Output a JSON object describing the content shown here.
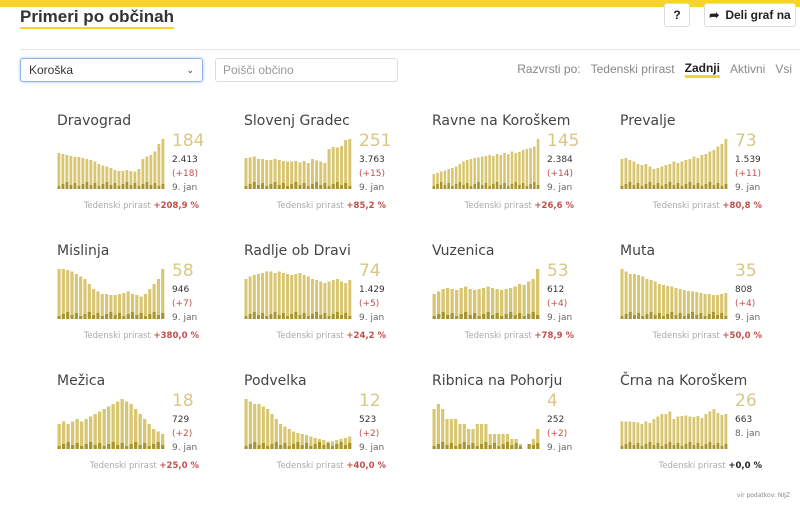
{
  "header": {
    "title": "Primeri po občinah",
    "help_label": "?",
    "share_label": "Deli graf na"
  },
  "filters": {
    "region": "Koroška",
    "search_placeholder": "Poišči občino",
    "sort_label": "Razvrsti po:",
    "sort_options": [
      "Tedenski prirast",
      "Zadnji",
      "Aktivni",
      "Vsi"
    ],
    "sort_active": "Zadnji"
  },
  "growth_label": "Tedenski prirast",
  "colors": {
    "bar": "#d8c670",
    "bar_dark": "#a89530",
    "accent": "#f8d42a",
    "positive": "#c0504d"
  },
  "municipalities": [
    {
      "name": "Dravograd",
      "active": "184",
      "total": "2.413",
      "new": "(+18)",
      "date": "9. jan",
      "growth": "+208,9 %",
      "bars": [
        0.72,
        0.7,
        0.68,
        0.66,
        0.64,
        0.64,
        0.62,
        0.6,
        0.58,
        0.55,
        0.5,
        0.47,
        0.45,
        0.42,
        0.38,
        0.36,
        0.36,
        0.38,
        0.36,
        0.35,
        0.4,
        0.6,
        0.65,
        0.68,
        0.75,
        0.9,
        1
      ]
    },
    {
      "name": "Slovenj Gradec",
      "active": "251",
      "total": "3.763",
      "new": "(+15)",
      "date": "9. jan",
      "growth": "+85,2 %",
      "bars": [
        0.62,
        0.63,
        0.65,
        0.6,
        0.6,
        0.58,
        0.58,
        0.6,
        0.58,
        0.56,
        0.55,
        0.55,
        0.56,
        0.53,
        0.56,
        0.52,
        0.6,
        0.57,
        0.55,
        0.52,
        0.8,
        0.84,
        0.83,
        0.86,
        0.98,
        1
      ]
    },
    {
      "name": "Ravne na Koroškem",
      "active": "145",
      "total": "2.384",
      "new": "(+14)",
      "date": "9. jan",
      "growth": "+26,6 %",
      "bars": [
        0.3,
        0.32,
        0.35,
        0.37,
        0.4,
        0.42,
        0.45,
        0.5,
        0.55,
        0.58,
        0.6,
        0.62,
        0.63,
        0.65,
        0.66,
        0.68,
        0.66,
        0.7,
        0.68,
        0.72,
        0.7,
        0.75,
        0.72,
        0.74,
        0.78,
        0.8,
        0.82,
        0.85,
        1
      ]
    },
    {
      "name": "Prevalje",
      "active": "73",
      "total": "1.539",
      "new": "(+11)",
      "date": "9. jan",
      "growth": "+80,8 %",
      "bars": [
        0.6,
        0.62,
        0.58,
        0.55,
        0.5,
        0.48,
        0.5,
        0.45,
        0.4,
        0.42,
        0.45,
        0.48,
        0.5,
        0.55,
        0.52,
        0.55,
        0.58,
        0.6,
        0.65,
        0.62,
        0.68,
        0.7,
        0.75,
        0.78,
        0.85,
        0.9,
        1
      ]
    },
    {
      "name": "Mislinja",
      "active": "58",
      "total": "946",
      "new": "(+7)",
      "date": "9. jan",
      "growth": "+380,0 %",
      "bars": [
        1,
        1,
        0.98,
        0.95,
        0.9,
        0.85,
        0.8,
        0.7,
        0.6,
        0.55,
        0.5,
        0.5,
        0.48,
        0.48,
        0.5,
        0.52,
        0.55,
        0.5,
        0.48,
        0.45,
        0.5,
        0.6,
        0.7,
        0.8,
        1
      ]
    },
    {
      "name": "Radlje ob Dravi",
      "active": "74",
      "total": "1.429",
      "new": "(+5)",
      "date": "9. jan",
      "growth": "+24,2 %",
      "bars": [
        0.8,
        0.85,
        0.88,
        0.9,
        0.92,
        0.95,
        0.95,
        0.92,
        0.95,
        0.92,
        0.9,
        0.88,
        0.9,
        0.92,
        0.88,
        0.85,
        0.8,
        0.78,
        0.75,
        0.72,
        0.75,
        0.78,
        0.8,
        0.75,
        0.72,
        0.78
      ]
    },
    {
      "name": "Vuzenica",
      "active": "53",
      "total": "612",
      "new": "(+4)",
      "date": "9. jan",
      "growth": "+78,9 %",
      "bars": [
        0.5,
        0.55,
        0.6,
        0.62,
        0.6,
        0.58,
        0.62,
        0.65,
        0.6,
        0.58,
        0.6,
        0.62,
        0.65,
        0.62,
        0.6,
        0.58,
        0.6,
        0.62,
        0.65,
        0.7,
        0.68,
        0.75,
        0.8,
        1
      ]
    },
    {
      "name": "Muta",
      "active": "35",
      "total": "808",
      "new": "(+4)",
      "date": "9. jan",
      "growth": "+50,0 %",
      "bars": [
        1,
        0.95,
        0.9,
        0.9,
        0.88,
        0.85,
        0.8,
        0.78,
        0.75,
        0.7,
        0.68,
        0.66,
        0.65,
        0.62,
        0.6,
        0.58,
        0.56,
        0.55,
        0.54,
        0.52,
        0.5,
        0.5,
        0.48,
        0.48,
        0.5,
        0.52
      ]
    },
    {
      "name": "Mežica",
      "active": "18",
      "total": "729",
      "new": "(+2)",
      "date": "9. jan",
      "growth": "+25,0 %",
      "bars": [
        0.5,
        0.55,
        0.5,
        0.55,
        0.6,
        0.55,
        0.6,
        0.65,
        0.7,
        0.75,
        0.8,
        0.85,
        0.9,
        0.95,
        1,
        0.95,
        0.9,
        0.8,
        0.7,
        0.6,
        0.5,
        0.4,
        0.35,
        0.3
      ]
    },
    {
      "name": "Podvelka",
      "active": "12",
      "total": "523",
      "new": "(+2)",
      "date": "9. jan",
      "growth": "+40,0 %",
      "bars": [
        1,
        0.95,
        0.9,
        0.9,
        0.85,
        0.8,
        0.7,
        0.6,
        0.5,
        0.45,
        0.4,
        0.35,
        0.32,
        0.3,
        0.28,
        0.25,
        0.22,
        0.2,
        0.18,
        0.15,
        0.15,
        0.18,
        0.2,
        0.22,
        0.25
      ]
    },
    {
      "name": "Ribnica na Pohorju",
      "active": "4",
      "total": "252",
      "new": "(+2)",
      "date": "9. jan",
      "growth": null,
      "bars": [
        0.8,
        0.9,
        0.8,
        0.6,
        0.6,
        0.6,
        0.5,
        0.5,
        0.4,
        0.4,
        0.5,
        0.5,
        0.5,
        0.3,
        0.3,
        0.3,
        0.3,
        0.3,
        0.2,
        0.2,
        0.1,
        0,
        0.1,
        0.2,
        0.4
      ]
    },
    {
      "name": "Črna na Koroškem",
      "active": "26",
      "total": "663",
      "new": null,
      "date": "8. jan",
      "growth": "+0,0 %",
      "bars": [
        0.55,
        0.55,
        0.55,
        0.54,
        0.53,
        0.5,
        0.55,
        0.52,
        0.6,
        0.65,
        0.7,
        0.7,
        0.75,
        0.6,
        0.65,
        0.66,
        0.67,
        0.65,
        0.64,
        0.66,
        0.62,
        0.7,
        0.75,
        0.8,
        0.72,
        0.68,
        0.7
      ]
    }
  ],
  "footer": "vir podatkov: NIJZ"
}
